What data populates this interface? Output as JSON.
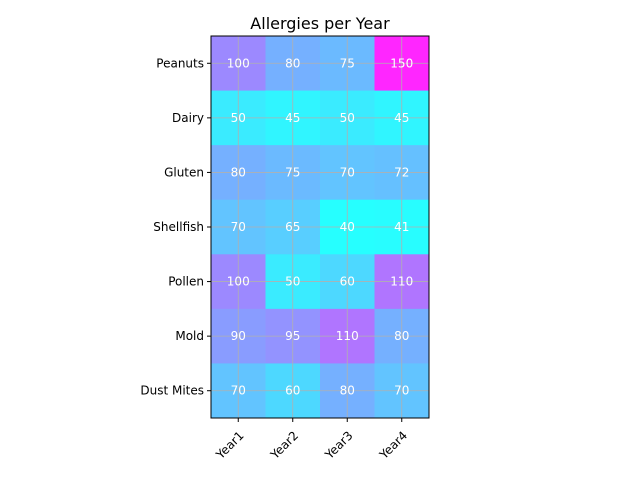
{
  "chart_data": {
    "type": "heatmap",
    "title": "Allergies per Year",
    "xlabel": "",
    "ylabel": "",
    "x_categories": [
      "Year1",
      "Year2",
      "Year3",
      "Year4"
    ],
    "y_categories": [
      "Peanuts",
      "Dairy",
      "Gluten",
      "Shellfish",
      "Pollen",
      "Mold",
      "Dust Mites"
    ],
    "values": [
      [
        100,
        80,
        75,
        150
      ],
      [
        50,
        45,
        50,
        45
      ],
      [
        80,
        75,
        70,
        72
      ],
      [
        70,
        65,
        40,
        41
      ],
      [
        100,
        50,
        60,
        110
      ],
      [
        90,
        95,
        110,
        80
      ],
      [
        70,
        60,
        80,
        70
      ]
    ],
    "grid": true,
    "colormap": "cool"
  }
}
